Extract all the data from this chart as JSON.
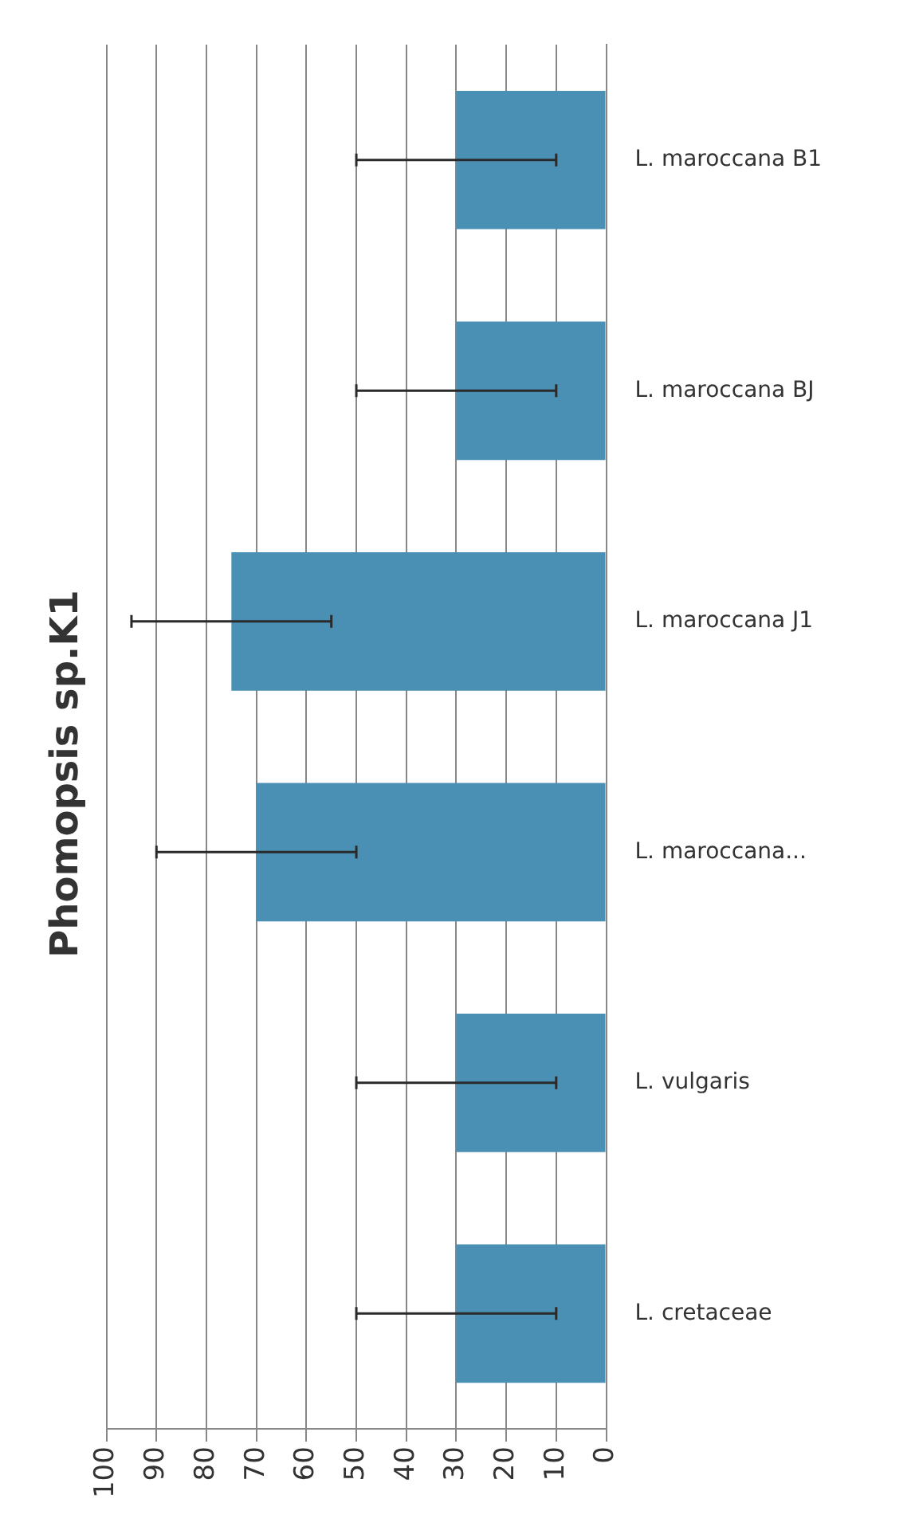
{
  "chart_data": {
    "type": "bar",
    "orientation": "horizontal",
    "title": "Phomopsis sp.K1",
    "categories": [
      "L. maroccana B1",
      "L. maroccana BJ",
      "L. maroccana J1",
      "L. maroccana...",
      "L. vulgaris",
      "L. cretaceae"
    ],
    "values": [
      30,
      30,
      75,
      70,
      30,
      30
    ],
    "errors": [
      20,
      20,
      20,
      20,
      20,
      20
    ],
    "color": "#4a90b4",
    "xlim": [
      100,
      0
    ],
    "xticks": [
      100,
      90,
      80,
      70,
      60,
      50,
      40,
      30,
      20,
      10,
      0
    ],
    "grid": "x",
    "legend": false
  }
}
